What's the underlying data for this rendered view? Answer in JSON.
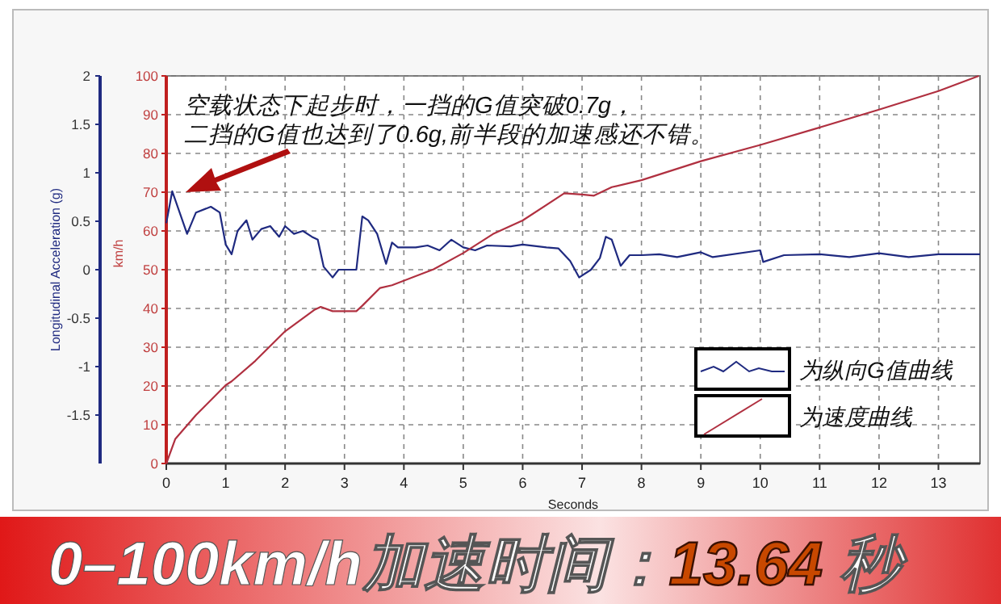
{
  "chart_data": {
    "type": "line",
    "title": "0–100km/h加速时间：**13.64** 秒",
    "xlabel": "Seconds",
    "ylabel": "km/h",
    "y2label": "Longitudinal Acceleration (g)",
    "annotations": [
      "空载状态下起步时，一挡的G值突破0.7g，",
      "二挡的G值也达到了0.6g,前半段的加速感还不错。"
    ],
    "xlim": [
      0,
      13.7
    ],
    "xticks": [
      0,
      1,
      2,
      3,
      4,
      5,
      6,
      7,
      8,
      9,
      10,
      11,
      12,
      13
    ],
    "ylim": [
      0,
      100
    ],
    "yticks": [
      0,
      10,
      20,
      30,
      40,
      50,
      60,
      70,
      80,
      90,
      100
    ],
    "y2lim": [
      -2,
      2
    ],
    "y2ticks": [
      -1.5,
      -1,
      -0.5,
      0,
      0.5,
      1,
      1.5,
      2
    ],
    "grid": true,
    "legend": "bottom right",
    "series": [
      {
        "name": "为纵向G值曲线",
        "color": "#1f2a80",
        "axis": "y2",
        "x": [
          0,
          0.1,
          0.35,
          0.5,
          0.75,
          0.9,
          1.0,
          1.1,
          1.2,
          1.35,
          1.45,
          1.6,
          1.75,
          1.9,
          2.0,
          2.15,
          2.3,
          2.45,
          2.55,
          2.65,
          2.8,
          2.9,
          3.0,
          3.2,
          3.3,
          3.4,
          3.55,
          3.7,
          3.8,
          3.9,
          4.2,
          4.4,
          4.6,
          4.8,
          5.0,
          5.2,
          5.4,
          5.8,
          6.0,
          6.4,
          6.6,
          6.8,
          6.95,
          7.15,
          7.3,
          7.4,
          7.5,
          7.65,
          7.8,
          8.0,
          8.3,
          8.6,
          9.0,
          9.2,
          10.0,
          10.05,
          10.4,
          11.0,
          11.5,
          12.0,
          12.5,
          13.0,
          13.7
        ],
        "values": [
          0.48,
          0.81,
          0.37,
          0.59,
          0.65,
          0.59,
          0.26,
          0.16,
          0.4,
          0.51,
          0.31,
          0.42,
          0.45,
          0.34,
          0.45,
          0.37,
          0.4,
          0.34,
          0.31,
          0.03,
          -0.08,
          0.0,
          0.0,
          0.0,
          0.55,
          0.51,
          0.37,
          0.06,
          0.28,
          0.23,
          0.23,
          0.25,
          0.2,
          0.31,
          0.23,
          0.2,
          0.25,
          0.24,
          0.26,
          0.23,
          0.22,
          0.09,
          -0.08,
          0.0,
          0.12,
          0.34,
          0.31,
          0.04,
          0.15,
          0.15,
          0.16,
          0.13,
          0.18,
          0.13,
          0.2,
          0.08,
          0.15,
          0.16,
          0.13,
          0.17,
          0.13,
          0.16,
          0.16
        ]
      },
      {
        "name": "为速度曲线",
        "color": "#b03040",
        "x": [
          0,
          0.15,
          0.5,
          1.0,
          1.1,
          1.5,
          2.0,
          2.5,
          2.6,
          2.8,
          3.2,
          3.3,
          3.6,
          3.8,
          4.5,
          5.0,
          5.5,
          6.0,
          6.7,
          7.0,
          7.2,
          7.5,
          8.0,
          9.0,
          10.0,
          11.0,
          12.0,
          13.0,
          13.68
        ],
        "values": [
          0,
          6.3,
          12.5,
          20.2,
          21.2,
          26.5,
          34.1,
          39.7,
          40.4,
          39.3,
          39.3,
          40.7,
          45.3,
          46,
          50.1,
          54.3,
          59.2,
          62.7,
          69.7,
          69.4,
          69.1,
          71.3,
          73.1,
          78,
          82.2,
          86.7,
          91.3,
          96.1,
          100
        ]
      }
    ]
  }
}
